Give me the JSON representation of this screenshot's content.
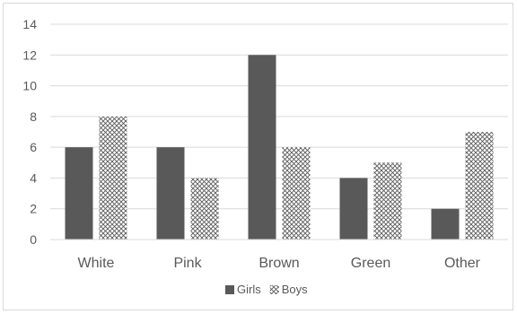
{
  "chart_data": {
    "type": "bar",
    "categories": [
      "White",
      "Pink",
      "Brown",
      "Green",
      "Other"
    ],
    "series": [
      {
        "name": "Girls",
        "values": [
          6,
          6,
          12,
          4,
          2
        ],
        "color": "#595959",
        "fill": "solid"
      },
      {
        "name": "Boys",
        "values": [
          8,
          4,
          6,
          5,
          7
        ],
        "color": "#595959",
        "fill": "crosshatch"
      }
    ],
    "title": "",
    "xlabel": "",
    "ylabel": "",
    "ylim": [
      0,
      14
    ],
    "yticks": [
      0,
      2,
      4,
      6,
      8,
      10,
      12,
      14
    ],
    "grid": true,
    "legend": "bottom-center"
  }
}
